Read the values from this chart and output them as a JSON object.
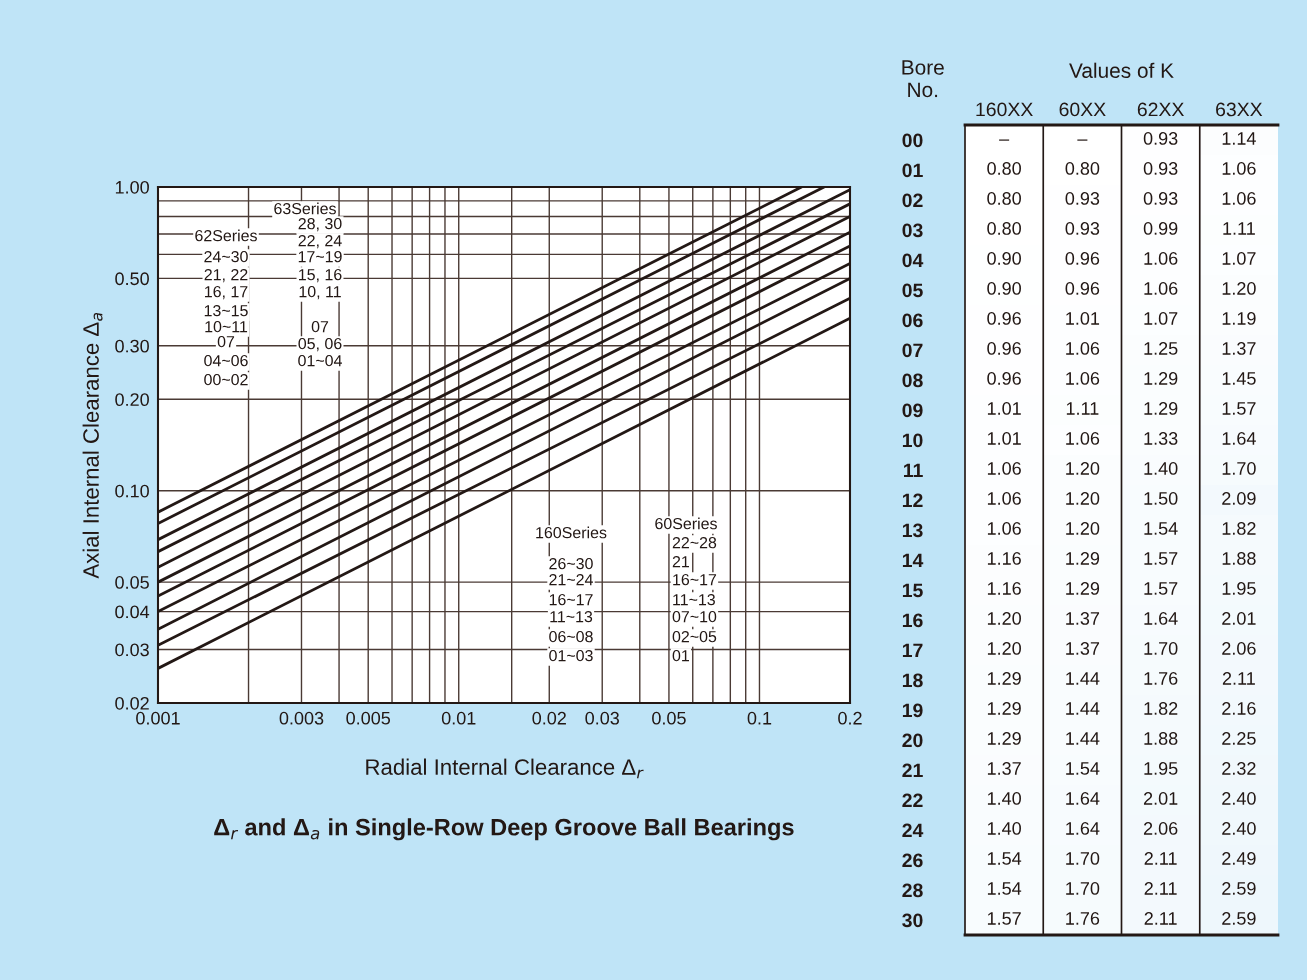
{
  "chart_data": [
    {
      "type": "line",
      "title": "Δ$_{r}$ and Δ$_{a}$ in Single-Row Deep Groove Ball Bearings",
      "xlabel": "Radial Internal Clearance Δ$_{r}$",
      "ylabel": "Axial Internal Clearance Δ$_{a}$",
      "log": "xy",
      "grid": true,
      "xlim": [
        0.001,
        0.2
      ],
      "ylim": [
        0.02,
        1.0
      ],
      "xticks": [
        0.001,
        {
          "value": 0.002,
          "label": null
        },
        0.003,
        {
          "value": 0.004,
          "label": null
        },
        0.005,
        {
          "value": 0.006,
          "label": null
        },
        {
          "value": 0.007,
          "label": null
        },
        {
          "value": 0.008,
          "label": null
        },
        {
          "value": 0.009,
          "label": null
        },
        0.01,
        {
          "value": 0.015,
          "label": null
        },
        0.02,
        0.03,
        {
          "value": 0.04,
          "label": null
        },
        0.05,
        {
          "value": 0.06,
          "label": null
        },
        {
          "value": 0.07,
          "label": null
        },
        {
          "value": 0.08,
          "label": null
        },
        {
          "value": 0.09,
          "label": null
        },
        0.1,
        0.2
      ],
      "yticks": [
        0.02,
        0.03,
        0.04,
        0.05,
        {
          "value": 0.1,
          "label": "0.10"
        },
        {
          "value": 0.2,
          "label": "0.20"
        },
        {
          "value": 0.3,
          "label": "0.30"
        },
        {
          "value": 0.5,
          "label": "0.50"
        },
        {
          "value": 0.6,
          "label": null
        },
        {
          "value": 0.7,
          "label": null
        },
        {
          "value": 0.8,
          "label": null
        },
        {
          "value": 0.9,
          "label": null
        },
        {
          "value": 1.0,
          "label": "1.00"
        }
      ],
      "series": [
        {
          "color": "#231815",
          "x": [
            0.001,
            0.138
          ],
          "values": [
            0.085,
            1.0
          ]
        },
        {
          "color": "#231815",
          "x": [
            0.001,
            0.164
          ],
          "values": [
            0.078,
            1.0
          ]
        },
        {
          "color": "#231815",
          "x": [
            0.001,
            0.2
          ],
          "values": [
            0.069,
            0.98
          ]
        },
        {
          "color": "#231815",
          "x": [
            0.001,
            0.2
          ],
          "values": [
            0.063,
            0.88
          ]
        },
        {
          "color": "#231815",
          "x": [
            0.001,
            0.2
          ],
          "values": [
            0.056,
            0.8
          ]
        },
        {
          "color": "#231815",
          "x": [
            0.001,
            0.2
          ],
          "values": [
            0.05,
            0.71
          ]
        },
        {
          "color": "#231815",
          "x": [
            0.001,
            0.2
          ],
          "values": [
            0.045,
            0.64
          ]
        },
        {
          "color": "#231815",
          "x": [
            0.001,
            0.2
          ],
          "values": [
            0.04,
            0.56
          ]
        },
        {
          "color": "#231815",
          "x": [
            0.001,
            0.2
          ],
          "values": [
            0.035,
            0.5
          ]
        },
        {
          "color": "#231815",
          "x": [
            0.001,
            0.2
          ],
          "values": [
            0.031,
            0.43
          ]
        },
        {
          "color": "#231815",
          "x": [
            0.001,
            0.2
          ],
          "values": [
            0.026,
            0.37
          ]
        }
      ],
      "annotations": [
        "62Series",
        "24~30",
        "21, 22",
        "16, 17",
        "13~15",
        "10~11",
        "07",
        "04~06",
        "00~02",
        "63Series",
        "28, 30",
        "22, 24",
        "17~19",
        "15, 16",
        "10, 11",
        "07",
        "05, 06",
        "01~04",
        "160Series",
        "26~30",
        "21~24",
        "16~17",
        "11~13",
        "06~08",
        "01~03",
        "60Series",
        "22~28",
        "21",
        "16~17",
        "11~13",
        "07~10",
        "02~05",
        "01"
      ]
    },
    {
      "type": "heatmap",
      "title": "Values of K",
      "ylabel": "Bore\nNo.",
      "categories": [
        "160XX",
        "60XX",
        "62XX",
        "63XX"
      ],
      "y_categories": [
        "00",
        "01",
        "02",
        "03",
        "04",
        "05",
        "06",
        "07",
        "08",
        "09",
        "10",
        "11",
        "12",
        "13",
        "14",
        "15",
        "16",
        "17",
        "18",
        "19",
        "20",
        "21",
        "22",
        "24",
        "26",
        "28",
        "30"
      ],
      "cells": [
        [
          null,
          null,
          0.93,
          1.14
        ],
        [
          0.8,
          0.8,
          0.93,
          1.06
        ],
        [
          0.8,
          0.93,
          0.93,
          1.06
        ],
        [
          0.8,
          0.93,
          0.99,
          1.11
        ],
        [
          0.9,
          0.96,
          1.06,
          1.07
        ],
        [
          0.9,
          0.96,
          1.06,
          1.2
        ],
        [
          0.96,
          1.01,
          1.07,
          1.19
        ],
        [
          0.96,
          1.06,
          1.25,
          1.37
        ],
        [
          0.96,
          1.06,
          1.29,
          1.45
        ],
        [
          1.01,
          1.11,
          1.29,
          1.57
        ],
        [
          1.01,
          1.06,
          1.33,
          1.64
        ],
        [
          1.06,
          1.2,
          1.4,
          1.7
        ],
        [
          1.06,
          1.2,
          1.5,
          2.09
        ],
        [
          1.06,
          1.2,
          1.54,
          1.82
        ],
        [
          1.16,
          1.29,
          1.57,
          1.88
        ],
        [
          1.16,
          1.29,
          1.57,
          1.95
        ],
        [
          1.2,
          1.37,
          1.64,
          2.01
        ],
        [
          1.2,
          1.37,
          1.7,
          2.06
        ],
        [
          1.29,
          1.44,
          1.76,
          2.11
        ],
        [
          1.29,
          1.44,
          1.82,
          2.16
        ],
        [
          1.29,
          1.44,
          1.88,
          2.25
        ],
        [
          1.37,
          1.54,
          1.95,
          2.32
        ],
        [
          1.4,
          1.64,
          2.01,
          2.4
        ],
        [
          1.4,
          1.64,
          2.06,
          2.4
        ],
        [
          1.54,
          1.7,
          2.11,
          2.49
        ],
        [
          1.54,
          1.7,
          2.11,
          2.59
        ],
        [
          1.57,
          1.76,
          2.11,
          2.59
        ]
      ],
      "cell_labels": [
        [
          "–",
          "–",
          "0.93",
          "1.14"
        ],
        [
          "0.80",
          "0.80",
          "0.93",
          "1.06"
        ],
        [
          "0.80",
          "0.93",
          "0.93",
          "1.06"
        ],
        [
          "0.80",
          "0.93",
          "0.99",
          "1.11"
        ],
        [
          "0.90",
          "0.96",
          "1.06",
          "1.07"
        ],
        [
          "0.90",
          "0.96",
          "1.06",
          "1.20"
        ],
        [
          "0.96",
          "1.01",
          "1.07",
          "1.19"
        ],
        [
          "0.96",
          "1.06",
          "1.25",
          "1.37"
        ],
        [
          "0.96",
          "1.06",
          "1.29",
          "1.45"
        ],
        [
          "1.01",
          "1.11",
          "1.29",
          "1.57"
        ],
        [
          "1.01",
          "1.06",
          "1.33",
          "1.64"
        ],
        [
          "1.06",
          "1.20",
          "1.40",
          "1.70"
        ],
        [
          "1.06",
          "1.20",
          "1.50",
          "2.09"
        ],
        [
          "1.06",
          "1.20",
          "1.54",
          "1.82"
        ],
        [
          "1.16",
          "1.29",
          "1.57",
          "1.88"
        ],
        [
          "1.16",
          "1.29",
          "1.57",
          "1.95"
        ],
        [
          "1.20",
          "1.37",
          "1.64",
          "2.01"
        ],
        [
          "1.20",
          "1.37",
          "1.70",
          "2.06"
        ],
        [
          "1.29",
          "1.44",
          "1.76",
          "2.11"
        ],
        [
          "1.29",
          "1.44",
          "1.82",
          "2.16"
        ],
        [
          "1.29",
          "1.44",
          "1.88",
          "2.25"
        ],
        [
          "1.37",
          "1.54",
          "1.95",
          "2.32"
        ],
        [
          "1.40",
          "1.64",
          "2.01",
          "2.40"
        ],
        [
          "1.40",
          "1.64",
          "2.06",
          "2.40"
        ],
        [
          "1.54",
          "1.70",
          "2.11",
          "2.49"
        ],
        [
          "1.54",
          "1.70",
          "2.11",
          "2.59"
        ],
        [
          "1.57",
          "1.76",
          "2.11",
          "2.59"
        ]
      ]
    }
  ]
}
